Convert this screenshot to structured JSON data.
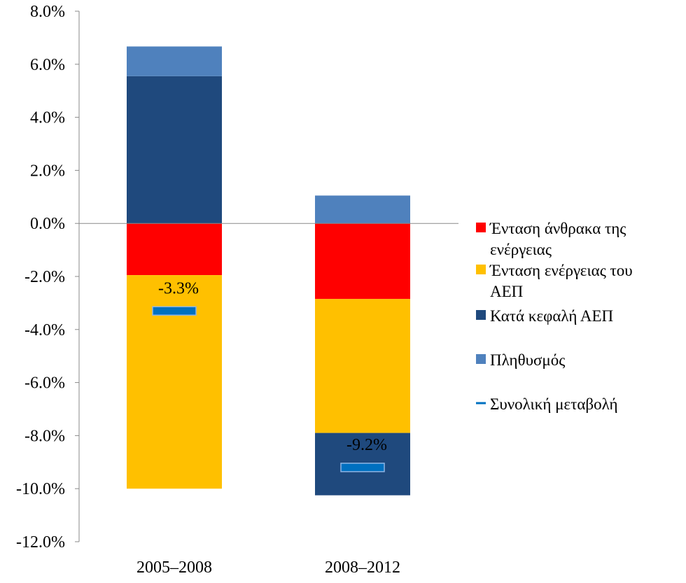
{
  "chart_data": {
    "type": "bar",
    "stacked": true,
    "title": "",
    "xlabel": "",
    "ylabel": "",
    "ylim": [
      -12.0,
      8.0
    ],
    "ytick_step": 2.0,
    "ytick_labels": [
      "8.0%",
      "6.0%",
      "4.0%",
      "2.0%",
      "0.0%",
      "-2.0%",
      "-4.0%",
      "-6.0%",
      "-8.0%",
      "-10.0%",
      "-12.0%"
    ],
    "grid": false,
    "legend_position": "right",
    "categories": [
      "2005–2008",
      "2008–2012"
    ],
    "series": [
      {
        "name": "Ένταση άνθρακα της ενέργειας",
        "legend_lines": [
          "Ένταση άνθρακα της",
          "ενέργειας"
        ],
        "color": "#ff0000",
        "values": [
          -1.95,
          -2.85
        ]
      },
      {
        "name": "Ένταση ενέργειας του ΑΕΠ",
        "legend_lines": [
          "Ένταση ενέργειας του",
          "ΑΕΠ"
        ],
        "color": "#ffc000",
        "values": [
          -8.05,
          -5.05
        ]
      },
      {
        "name": "Κατά κεφαλή ΑΕΠ",
        "legend_lines": [
          "Κατά κεφαλή ΑΕΠ"
        ],
        "color": "#1f497d",
        "values": [
          5.55,
          -2.35
        ]
      },
      {
        "name": "Πληθυσμός",
        "legend_lines": [
          "Πληθυσμός"
        ],
        "color": "#4f81bd",
        "values": [
          1.12,
          1.05
        ]
      }
    ],
    "total_change": {
      "name": "Συνολική μεταβολή",
      "legend_lines": [
        "Συνολική μεταβολή"
      ],
      "color": "#0070c0",
      "values": [
        -3.3,
        -9.2
      ],
      "labels": [
        "-3.3%",
        "-9.2%"
      ]
    }
  }
}
